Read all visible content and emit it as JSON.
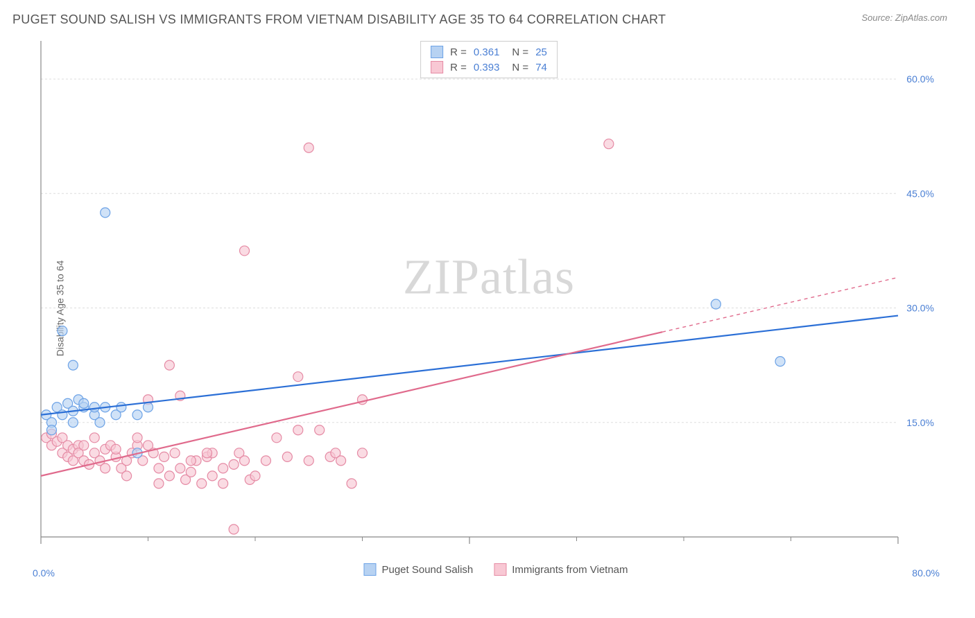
{
  "title": "PUGET SOUND SALISH VS IMMIGRANTS FROM VIETNAM DISABILITY AGE 35 TO 64 CORRELATION CHART",
  "source": "Source: ZipAtlas.com",
  "ylabel": "Disability Age 35 to 64",
  "watermark_a": "ZIP",
  "watermark_b": "atlas",
  "chart": {
    "type": "scatter-with-regression",
    "background_color": "#ffffff",
    "grid_color": "#dddddd",
    "axis_color": "#888888",
    "tick_label_color": "#4a7fd4",
    "xlim": [
      0,
      80
    ],
    "ylim": [
      0,
      65
    ],
    "x_ticks_major": [
      0,
      40,
      80
    ],
    "x_ticks_minor": [
      10,
      20,
      30,
      50,
      60,
      70
    ],
    "y_grid": [
      15,
      30,
      45,
      60
    ],
    "y_tick_labels": [
      "15.0%",
      "30.0%",
      "45.0%",
      "60.0%"
    ],
    "x_origin_label": "0.0%",
    "x_max_label": "80.0%",
    "marker_radius": 7,
    "marker_stroke_width": 1.2,
    "line_width": 2.2
  },
  "series": [
    {
      "name": "Puget Sound Salish",
      "color_fill": "#b7d2f2",
      "color_stroke": "#6ca2e6",
      "line_color": "#2b6fd6",
      "stats": {
        "R": "0.361",
        "N": "25"
      },
      "regression": {
        "x1": 0,
        "y1": 16,
        "x2": 80,
        "y2": 29,
        "dashed_from_x": null
      },
      "points": [
        [
          0.5,
          16
        ],
        [
          1,
          15
        ],
        [
          1,
          14
        ],
        [
          1.5,
          17
        ],
        [
          2,
          16
        ],
        [
          2.5,
          17.5
        ],
        [
          3,
          16.5
        ],
        [
          3,
          15
        ],
        [
          3.5,
          18
        ],
        [
          4,
          17
        ],
        [
          4,
          17.5
        ],
        [
          5,
          16
        ],
        [
          5,
          17
        ],
        [
          5.5,
          15
        ],
        [
          6,
          17
        ],
        [
          7,
          16
        ],
        [
          7.5,
          17
        ],
        [
          9,
          16
        ],
        [
          10,
          17
        ],
        [
          9,
          11
        ],
        [
          3,
          22.5
        ],
        [
          6,
          42.5
        ],
        [
          2,
          27
        ],
        [
          63,
          30.5
        ],
        [
          69,
          23
        ]
      ]
    },
    {
      "name": "Immigrants from Vietnam",
      "color_fill": "#f8c8d4",
      "color_stroke": "#e58aa4",
      "line_color": "#e06a8c",
      "stats": {
        "R": "0.393",
        "N": "74"
      },
      "regression": {
        "x1": 0,
        "y1": 8,
        "x2": 80,
        "y2": 34,
        "dashed_from_x": 58
      },
      "points": [
        [
          0.5,
          13
        ],
        [
          1,
          13.5
        ],
        [
          1,
          12
        ],
        [
          1.5,
          12.5
        ],
        [
          2,
          11
        ],
        [
          2,
          13
        ],
        [
          2.5,
          12
        ],
        [
          2.5,
          10.5
        ],
        [
          3,
          11.5
        ],
        [
          3,
          10
        ],
        [
          3.5,
          12
        ],
        [
          3.5,
          11
        ],
        [
          4,
          10
        ],
        [
          4,
          12
        ],
        [
          4.5,
          9.5
        ],
        [
          5,
          11
        ],
        [
          5,
          13
        ],
        [
          5.5,
          10
        ],
        [
          6,
          11.5
        ],
        [
          6,
          9
        ],
        [
          6.5,
          12
        ],
        [
          7,
          10.5
        ],
        [
          7,
          11.5
        ],
        [
          7.5,
          9
        ],
        [
          8,
          10
        ],
        [
          8,
          8
        ],
        [
          8.5,
          11
        ],
        [
          9,
          12
        ],
        [
          9,
          13
        ],
        [
          9.5,
          10
        ],
        [
          10,
          12
        ],
        [
          10,
          18
        ],
        [
          10.5,
          11
        ],
        [
          11,
          9
        ],
        [
          11,
          7
        ],
        [
          11.5,
          10.5
        ],
        [
          12,
          8
        ],
        [
          12.5,
          11
        ],
        [
          13,
          9
        ],
        [
          13.5,
          7.5
        ],
        [
          14,
          8.5
        ],
        [
          14.5,
          10
        ],
        [
          15,
          7
        ],
        [
          15.5,
          10.5
        ],
        [
          16,
          8
        ],
        [
          16,
          11
        ],
        [
          17,
          9
        ],
        [
          17,
          7
        ],
        [
          18,
          9.5
        ],
        [
          18.5,
          11
        ],
        [
          19,
          10
        ],
        [
          19.5,
          7.5
        ],
        [
          20,
          8
        ],
        [
          13,
          18.5
        ],
        [
          14,
          10
        ],
        [
          15.5,
          11
        ],
        [
          18,
          1
        ],
        [
          21,
          10
        ],
        [
          22,
          13
        ],
        [
          23,
          10.5
        ],
        [
          24,
          14
        ],
        [
          25,
          10
        ],
        [
          26,
          14
        ],
        [
          27,
          10.5
        ],
        [
          27.5,
          11
        ],
        [
          28,
          10
        ],
        [
          29,
          7
        ],
        [
          30,
          11
        ],
        [
          30,
          18
        ],
        [
          24,
          21
        ],
        [
          19,
          37.5
        ],
        [
          25,
          51
        ],
        [
          53,
          51.5
        ],
        [
          12,
          22.5
        ]
      ]
    }
  ],
  "stats_labels": {
    "R": "R =",
    "N": "N ="
  }
}
